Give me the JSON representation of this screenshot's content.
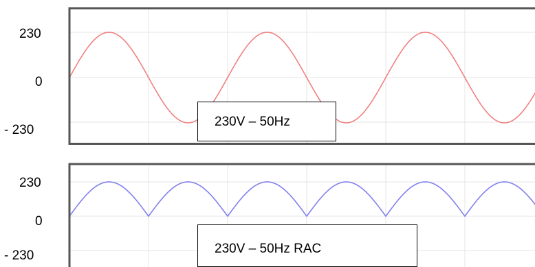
{
  "chart_data": [
    {
      "type": "line",
      "title": "",
      "xlabel": "",
      "ylabel": "",
      "y_ticks": [
        "230",
        "0",
        "- 230"
      ],
      "ylim": [
        -230,
        230
      ],
      "cycles_shown": 3.0,
      "grid": true,
      "series": [
        {
          "waveform": "sine",
          "amplitude": 230,
          "color": "#f08080"
        }
      ],
      "annotation": "230V – 50Hz"
    },
    {
      "type": "line",
      "title": "",
      "xlabel": "",
      "ylabel": "",
      "y_ticks": [
        "230",
        "0",
        "- 230"
      ],
      "ylim": [
        -230,
        230
      ],
      "cycles_shown": 3.0,
      "grid": true,
      "series": [
        {
          "waveform": "full-wave rectified sine",
          "amplitude": 230,
          "color": "#8080ee"
        }
      ],
      "annotation": "230V – 50Hz RAC"
    }
  ]
}
